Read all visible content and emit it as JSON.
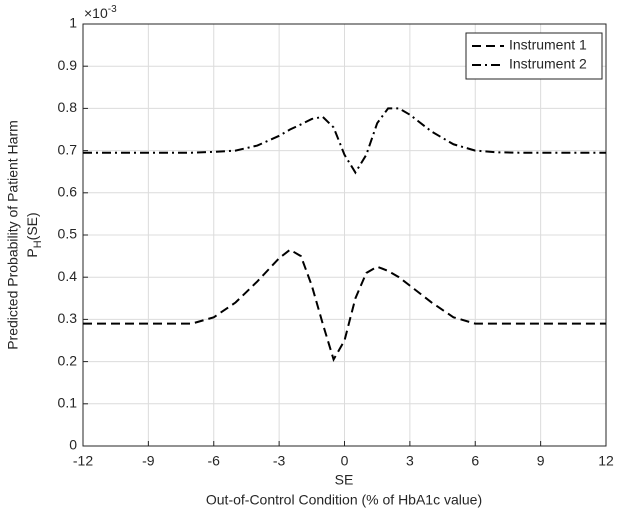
{
  "chart_data": {
    "type": "line",
    "axis_multiplier": {
      "base": "×10",
      "exp": "-3"
    },
    "ylabel": "Predicted Probability of Patient Harm",
    "ylabel2": {
      "base": "P",
      "sub": "H",
      "rest": "(SE)"
    },
    "xlabel": "SE",
    "xlabel2": "Out-of-Control Condition (% of HbA1c value)",
    "x": [
      -12,
      -10,
      -8,
      -7,
      -6,
      -5,
      -4,
      -3,
      -2.5,
      -2,
      -1.5,
      -1,
      -0.5,
      0,
      0.5,
      1,
      1.5,
      2,
      2.5,
      3,
      4,
      5,
      6,
      7,
      8,
      10,
      12
    ],
    "series": [
      {
        "name": "Instrument 1",
        "color": "#000000",
        "line_style": "--",
        "values": [
          0.29,
          0.29,
          0.29,
          0.29,
          0.305,
          0.34,
          0.39,
          0.445,
          0.465,
          0.45,
          0.38,
          0.29,
          0.205,
          0.25,
          0.35,
          0.41,
          0.425,
          0.415,
          0.4,
          0.38,
          0.34,
          0.305,
          0.29,
          0.29,
          0.29,
          0.29,
          0.29
        ]
      },
      {
        "name": "Instrument 2",
        "color": "#000000",
        "line_style": "-.",
        "values": [
          0.695,
          0.695,
          0.695,
          0.695,
          0.697,
          0.7,
          0.712,
          0.735,
          0.75,
          0.762,
          0.775,
          0.78,
          0.755,
          0.69,
          0.648,
          0.69,
          0.765,
          0.8,
          0.8,
          0.785,
          0.745,
          0.715,
          0.7,
          0.696,
          0.695,
          0.695,
          0.695
        ]
      }
    ],
    "xlim": [
      -12,
      12
    ],
    "xticks": [
      -12,
      -9,
      -6,
      -3,
      0,
      3,
      6,
      9,
      12
    ],
    "ylim": [
      0,
      1
    ],
    "yticks": [
      0,
      0.1,
      0.2,
      0.3,
      0.4,
      0.5,
      0.6,
      0.7,
      0.8,
      0.9,
      1
    ],
    "grid": true,
    "legend": "top-right"
  }
}
